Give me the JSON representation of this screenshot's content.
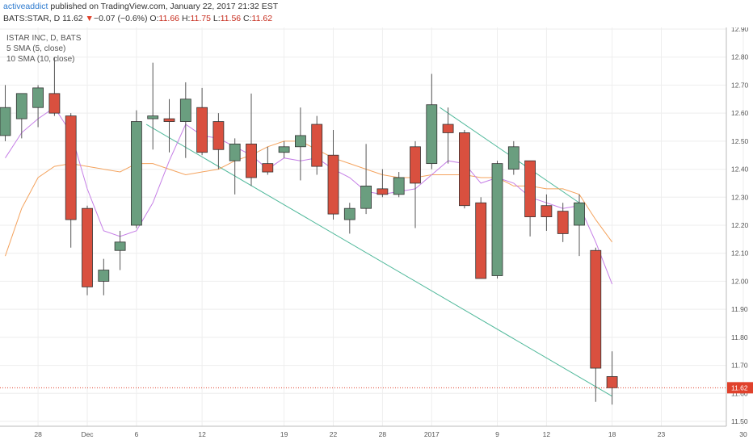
{
  "header": {
    "user": "activeaddict",
    "published": " published on TradingView.com, January 22, 2017 21:32 EST",
    "symbol": "BATS:STAR, D 11.62",
    "down_arrow": "▼",
    "change": "−0.07 (−0.6%)",
    "o_label": "O:",
    "o_value": "11.66",
    "h_label": "H:",
    "h_value": "11.75",
    "l_label": "L:",
    "l_value": "11.56",
    "c_label": "C:",
    "c_value": "11.62"
  },
  "legend": {
    "title": "ISTAR INC, D, BATS",
    "sma5": "5 SMA (5, close)",
    "sma10": "10 SMA (10, close)"
  },
  "colors": {
    "up": "#6a9e7f",
    "down": "#d9503f",
    "sma5": "#c57ee6",
    "sma10": "#f4a35e",
    "trendline": "#4fb89a",
    "last_price": "#e0412b"
  },
  "chart_data": {
    "type": "candlestick",
    "ylim": [
      11.5,
      12.9
    ],
    "y_ticks": [
      "11.50",
      "11.60",
      "11.70",
      "11.80",
      "11.90",
      "12.00",
      "12.10",
      "12.20",
      "12.30",
      "12.40",
      "12.50",
      "12.60",
      "12.70",
      "12.80",
      "12.90"
    ],
    "x_ticks": [
      {
        "label": "28",
        "x": 2
      },
      {
        "label": "Dec",
        "x": 5
      },
      {
        "label": "6",
        "x": 8
      },
      {
        "label": "12",
        "x": 12
      },
      {
        "label": "19",
        "x": 17
      },
      {
        "label": "22",
        "x": 20
      },
      {
        "label": "28",
        "x": 23
      },
      {
        "label": "2017",
        "x": 26
      },
      {
        "label": "9",
        "x": 30
      },
      {
        "label": "12",
        "x": 33
      },
      {
        "label": "18",
        "x": 37
      },
      {
        "label": "23",
        "x": 40
      },
      {
        "label": "30",
        "x": 45
      }
    ],
    "last_price": "11.62",
    "candles": [
      {
        "x": 0,
        "o": 12.52,
        "h": 12.7,
        "l": 12.5,
        "c": 12.62
      },
      {
        "x": 1,
        "o": 12.58,
        "h": 12.66,
        "l": 12.51,
        "c": 12.67
      },
      {
        "x": 2,
        "o": 12.62,
        "h": 12.7,
        "l": 12.55,
        "c": 12.69
      },
      {
        "x": 3,
        "o": 12.67,
        "h": 12.8,
        "l": 12.59,
        "c": 12.6
      },
      {
        "x": 4,
        "o": 12.59,
        "h": 12.6,
        "l": 12.12,
        "c": 12.22
      },
      {
        "x": 5,
        "o": 12.26,
        "h": 12.27,
        "l": 11.95,
        "c": 11.98
      },
      {
        "x": 6,
        "o": 12.0,
        "h": 12.08,
        "l": 11.95,
        "c": 12.04
      },
      {
        "x": 7,
        "o": 12.11,
        "h": 12.18,
        "l": 12.04,
        "c": 12.14
      },
      {
        "x": 8,
        "o": 12.2,
        "h": 12.61,
        "l": 12.19,
        "c": 12.57
      },
      {
        "x": 9,
        "o": 12.58,
        "h": 12.78,
        "l": 12.47,
        "c": 12.59
      },
      {
        "x": 10,
        "o": 12.58,
        "h": 12.65,
        "l": 12.46,
        "c": 12.57
      },
      {
        "x": 11,
        "o": 12.57,
        "h": 12.71,
        "l": 12.44,
        "c": 12.65
      },
      {
        "x": 12,
        "o": 12.62,
        "h": 12.69,
        "l": 12.45,
        "c": 12.46
      },
      {
        "x": 13,
        "o": 12.57,
        "h": 12.6,
        "l": 12.4,
        "c": 12.47
      },
      {
        "x": 14,
        "o": 12.43,
        "h": 12.51,
        "l": 12.31,
        "c": 12.49
      },
      {
        "x": 15,
        "o": 12.49,
        "h": 12.67,
        "l": 12.34,
        "c": 12.37
      },
      {
        "x": 16,
        "o": 12.42,
        "h": 12.48,
        "l": 12.38,
        "c": 12.39
      },
      {
        "x": 17,
        "o": 12.46,
        "h": 12.5,
        "l": 12.44,
        "c": 12.48
      },
      {
        "x": 18,
        "o": 12.48,
        "h": 12.62,
        "l": 12.36,
        "c": 12.52
      },
      {
        "x": 19,
        "o": 12.56,
        "h": 12.59,
        "l": 12.38,
        "c": 12.41
      },
      {
        "x": 20,
        "o": 12.45,
        "h": 12.54,
        "l": 12.22,
        "c": 12.24
      },
      {
        "x": 21,
        "o": 12.22,
        "h": 12.28,
        "l": 12.17,
        "c": 12.26
      },
      {
        "x": 22,
        "o": 12.26,
        "h": 12.49,
        "l": 12.24,
        "c": 12.34
      },
      {
        "x": 23,
        "o": 12.33,
        "h": 12.4,
        "l": 12.3,
        "c": 12.31
      },
      {
        "x": 24,
        "o": 12.31,
        "h": 12.39,
        "l": 12.3,
        "c": 12.37
      },
      {
        "x": 25,
        "o": 12.48,
        "h": 12.5,
        "l": 12.19,
        "c": 12.35
      },
      {
        "x": 26,
        "o": 12.42,
        "h": 12.74,
        "l": 12.4,
        "c": 12.63
      },
      {
        "x": 27,
        "o": 12.56,
        "h": 12.62,
        "l": 12.42,
        "c": 12.53
      },
      {
        "x": 28,
        "o": 12.53,
        "h": 12.54,
        "l": 12.26,
        "c": 12.27
      },
      {
        "x": 29,
        "o": 12.28,
        "h": 12.3,
        "l": 12.01,
        "c": 12.01
      },
      {
        "x": 30,
        "o": 12.02,
        "h": 12.43,
        "l": 12.01,
        "c": 12.42
      },
      {
        "x": 31,
        "o": 12.4,
        "h": 12.5,
        "l": 12.38,
        "c": 12.48
      },
      {
        "x": 32,
        "o": 12.43,
        "h": 12.43,
        "l": 12.16,
        "c": 12.23
      },
      {
        "x": 33,
        "o": 12.27,
        "h": 12.31,
        "l": 12.18,
        "c": 12.23
      },
      {
        "x": 34,
        "o": 12.25,
        "h": 12.28,
        "l": 12.14,
        "c": 12.17
      },
      {
        "x": 35,
        "o": 12.2,
        "h": 12.31,
        "l": 12.09,
        "c": 12.28
      },
      {
        "x": 36,
        "o": 12.11,
        "h": 12.12,
        "l": 11.57,
        "c": 11.69
      },
      {
        "x": 37,
        "o": 11.66,
        "h": 11.75,
        "l": 11.56,
        "c": 11.62
      }
    ],
    "sma5": [
      [
        0,
        12.44
      ],
      [
        1,
        12.53
      ],
      [
        2,
        12.58
      ],
      [
        3,
        12.62
      ],
      [
        4,
        12.53
      ],
      [
        5,
        12.33
      ],
      [
        6,
        12.18
      ],
      [
        7,
        12.16
      ],
      [
        8,
        12.18
      ],
      [
        9,
        12.28
      ],
      [
        10,
        12.43
      ],
      [
        11,
        12.56
      ],
      [
        12,
        12.52
      ],
      [
        13,
        12.51
      ],
      [
        14,
        12.48
      ],
      [
        15,
        12.45
      ],
      [
        16,
        12.4
      ],
      [
        17,
        12.44
      ],
      [
        18,
        12.43
      ],
      [
        19,
        12.44
      ],
      [
        20,
        12.4
      ],
      [
        21,
        12.37
      ],
      [
        22,
        12.32
      ],
      [
        23,
        12.31
      ],
      [
        24,
        12.32
      ],
      [
        25,
        12.33
      ],
      [
        26,
        12.38
      ],
      [
        27,
        12.43
      ],
      [
        28,
        12.42
      ],
      [
        29,
        12.35
      ],
      [
        30,
        12.37
      ],
      [
        31,
        12.35
      ],
      [
        32,
        12.3
      ],
      [
        33,
        12.28
      ],
      [
        34,
        12.26
      ],
      [
        35,
        12.27
      ],
      [
        36,
        12.14
      ],
      [
        37,
        11.99
      ]
    ],
    "sma10": [
      [
        0,
        12.09
      ],
      [
        1,
        12.26
      ],
      [
        2,
        12.37
      ],
      [
        3,
        12.41
      ],
      [
        4,
        12.42
      ],
      [
        5,
        12.41
      ],
      [
        6,
        12.4
      ],
      [
        7,
        12.39
      ],
      [
        8,
        12.42
      ],
      [
        9,
        12.42
      ],
      [
        10,
        12.4
      ],
      [
        11,
        12.38
      ],
      [
        12,
        12.39
      ],
      [
        13,
        12.4
      ],
      [
        14,
        12.43
      ],
      [
        15,
        12.45
      ],
      [
        16,
        12.48
      ],
      [
        17,
        12.5
      ],
      [
        18,
        12.5
      ],
      [
        19,
        12.47
      ],
      [
        20,
        12.44
      ],
      [
        21,
        12.42
      ],
      [
        22,
        12.4
      ],
      [
        23,
        12.38
      ],
      [
        24,
        12.37
      ],
      [
        25,
        12.37
      ],
      [
        26,
        12.38
      ],
      [
        27,
        12.38
      ],
      [
        28,
        12.38
      ],
      [
        29,
        12.37
      ],
      [
        30,
        12.37
      ],
      [
        31,
        12.34
      ],
      [
        32,
        12.34
      ],
      [
        33,
        12.33
      ],
      [
        34,
        12.33
      ],
      [
        35,
        12.31
      ],
      [
        36,
        12.22
      ],
      [
        37,
        12.14
      ]
    ],
    "trendlines": [
      {
        "x1": 8.6,
        "y1": 12.56,
        "x2": 37.0,
        "y2": 11.59
      },
      {
        "x1": 26.5,
        "y1": 12.62,
        "x2": 35.0,
        "y2": 12.28
      }
    ]
  }
}
